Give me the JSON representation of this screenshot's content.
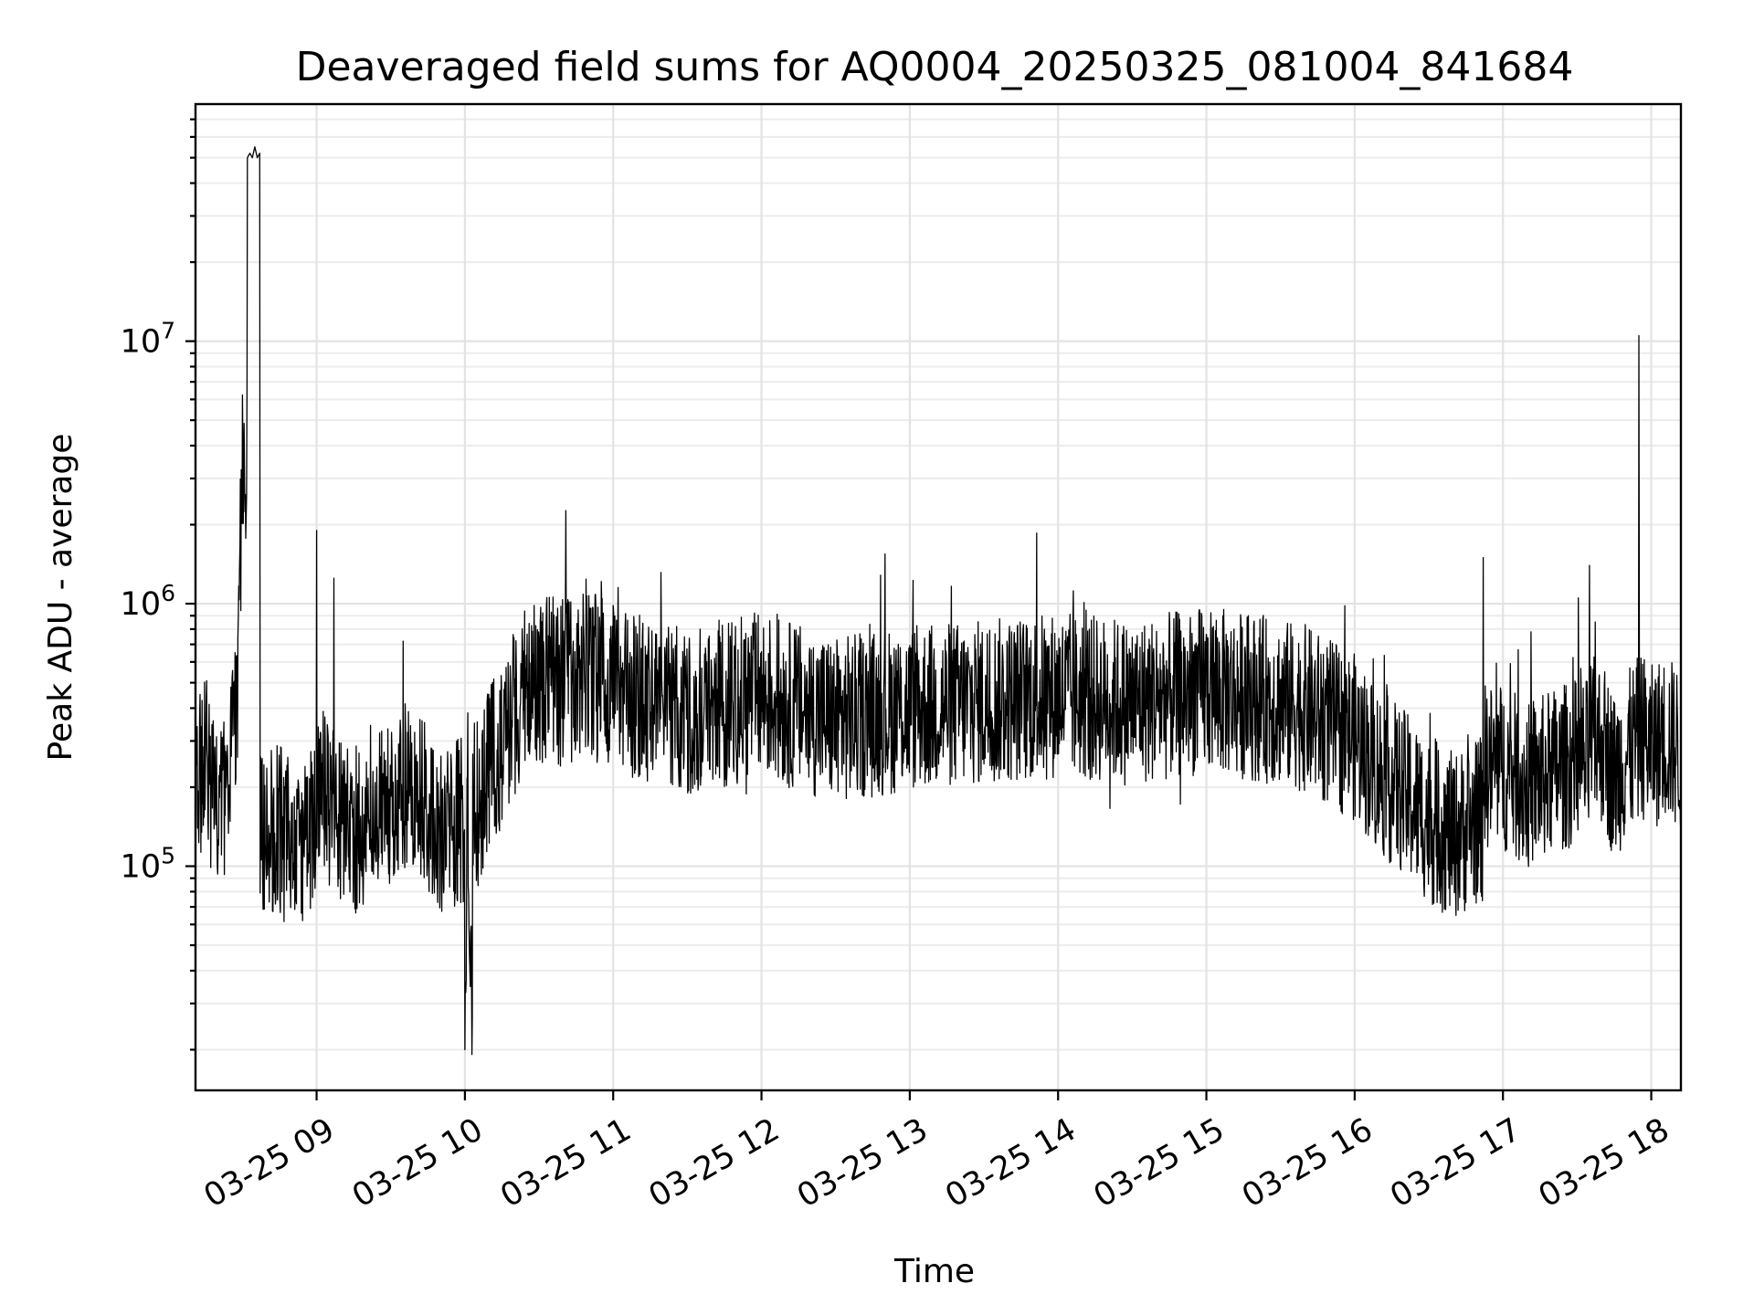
{
  "chart_data": {
    "type": "line",
    "title": "Deaveraged field sums for AQ0004_20250325_081004_841684",
    "xlabel": "Time",
    "ylabel": "Peak ADU - average",
    "y_scale": "log",
    "grid": true,
    "grid_minor": true,
    "xlim": [
      "2025-03-25 08:11",
      "2025-03-25 18:12"
    ],
    "ylim": [
      14000,
      80000000
    ],
    "x_ticks": [
      "2025-03-25 09:00",
      "2025-03-25 10:00",
      "2025-03-25 11:00",
      "2025-03-25 12:00",
      "2025-03-25 13:00",
      "2025-03-25 14:00",
      "2025-03-25 15:00",
      "2025-03-25 16:00",
      "2025-03-25 17:00",
      "2025-03-25 18:00"
    ],
    "x_tick_labels": [
      "03-25 09",
      "03-25 10",
      "03-25 11",
      "03-25 12",
      "03-25 13",
      "03-25 14",
      "03-25 15",
      "03-25 16",
      "03-25 17",
      "03-25 18"
    ],
    "y_ticks": [
      100000,
      1000000,
      10000000
    ],
    "y_tick_labels": [
      {
        "base": "10",
        "exp": "5"
      },
      {
        "base": "10",
        "exp": "6"
      },
      {
        "base": "10",
        "exp": "7"
      }
    ],
    "series": [
      {
        "color": "#000000",
        "x": [
          "2025-03-25 08:11",
          "2025-03-25 08:15",
          "2025-03-25 08:20",
          "2025-03-25 08:25",
          "2025-03-25 08:28",
          "2025-03-25 08:30",
          "2025-03-25 08:32",
          "2025-03-25 08:33",
          "2025-03-25 08:34",
          "2025-03-25 08:35",
          "2025-03-25 08:36",
          "2025-03-25 08:37",
          "2025-03-25 08:38",
          "2025-03-25 08:40",
          "2025-03-25 08:45",
          "2025-03-25 08:50",
          "2025-03-25 08:55",
          "2025-03-25 08:59",
          "2025-03-25 09:00",
          "2025-03-25 09:01",
          "2025-03-25 09:05",
          "2025-03-25 09:07",
          "2025-03-25 09:10",
          "2025-03-25 09:20",
          "2025-03-25 09:30",
          "2025-03-25 09:35",
          "2025-03-25 09:40",
          "2025-03-25 09:50",
          "2025-03-25 09:57",
          "2025-03-25 10:00",
          "2025-03-25 10:01",
          "2025-03-25 10:03",
          "2025-03-25 10:05",
          "2025-03-25 10:10",
          "2025-03-25 10:15",
          "2025-03-25 10:20",
          "2025-03-25 10:25",
          "2025-03-25 10:30",
          "2025-03-25 10:40",
          "2025-03-25 10:50",
          "2025-03-25 11:00",
          "2025-03-25 11:15",
          "2025-03-25 11:30",
          "2025-03-25 12:00",
          "2025-03-25 12:30",
          "2025-03-25 13:00",
          "2025-03-25 13:30",
          "2025-03-25 14:00",
          "2025-03-25 14:30",
          "2025-03-25 15:00",
          "2025-03-25 15:20",
          "2025-03-25 15:40",
          "2025-03-25 16:00",
          "2025-03-25 16:10",
          "2025-03-25 16:20",
          "2025-03-25 16:30",
          "2025-03-25 16:40",
          "2025-03-25 16:50",
          "2025-03-25 16:52",
          "2025-03-25 17:00",
          "2025-03-25 17:10",
          "2025-03-25 17:20",
          "2025-03-25 17:30",
          "2025-03-25 17:35",
          "2025-03-25 17:40",
          "2025-03-25 17:45",
          "2025-03-25 17:50",
          "2025-03-25 17:54",
          "2025-03-25 17:55",
          "2025-03-25 17:56",
          "2025-03-25 18:00",
          "2025-03-25 18:05",
          "2025-03-25 18:12"
        ],
        "y": [
          200000,
          260000,
          150000,
          230000,
          420000,
          3700000,
          50000000,
          52000000,
          50000000,
          55000000,
          50000000,
          52000000,
          130000,
          130000,
          140000,
          110000,
          120000,
          140000,
          1900000,
          210000,
          170000,
          1250000,
          150000,
          130000,
          180000,
          720000,
          200000,
          130000,
          150000,
          20000,
          220000,
          27000,
          170000,
          230000,
          300000,
          380000,
          470000,
          520000,
          500000,
          540000,
          480000,
          420000,
          390000,
          450000,
          360000,
          400000,
          420000,
          450000,
          420000,
          470000,
          440000,
          400000,
          310000,
          230000,
          190000,
          150000,
          130000,
          150000,
          1500000,
          240000,
          200000,
          230000,
          250000,
          1400000,
          300000,
          220000,
          260000,
          300000,
          10500000,
          320000,
          280000,
          310000,
          280000
        ]
      }
    ]
  }
}
